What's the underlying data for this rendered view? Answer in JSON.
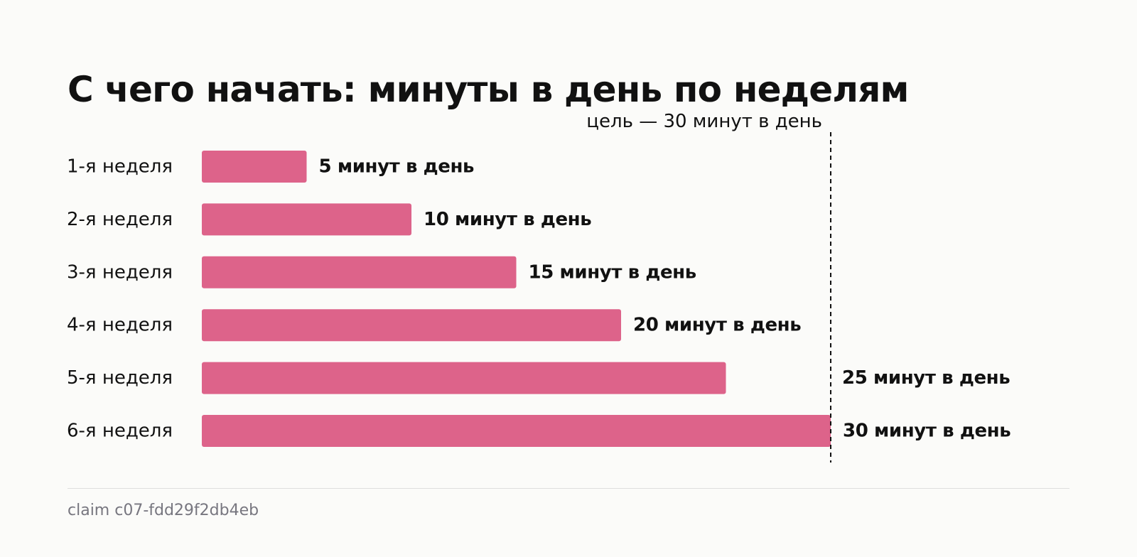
{
  "colors": {
    "background": "#fbfbf9",
    "bar": "#dd638a",
    "text": "#111111",
    "footer_text": "#77767f",
    "rule": "#dedede"
  },
  "chart_data": {
    "type": "bar",
    "orientation": "horizontal",
    "title": "С чего начать: минуты в день по неделям",
    "categories": [
      "1-я неделя",
      "2-я неделя",
      "3-я неделя",
      "4-я неделя",
      "5-я неделя",
      "6-я неделя"
    ],
    "values": [
      5,
      10,
      15,
      20,
      25,
      30
    ],
    "value_labels": [
      "5 минут в день",
      "10 минут в день",
      "15 минут в день",
      "20 минут в день",
      "25 минут в день",
      "30 минут в день"
    ],
    "target": {
      "value": 30,
      "label": "цель — 30 минут в день",
      "style": "dashed"
    },
    "xlim": [
      0,
      30
    ],
    "grid": false,
    "xlabel": "",
    "ylabel": ""
  },
  "footer": {
    "text": "claim c07-fdd29f2db4eb"
  }
}
